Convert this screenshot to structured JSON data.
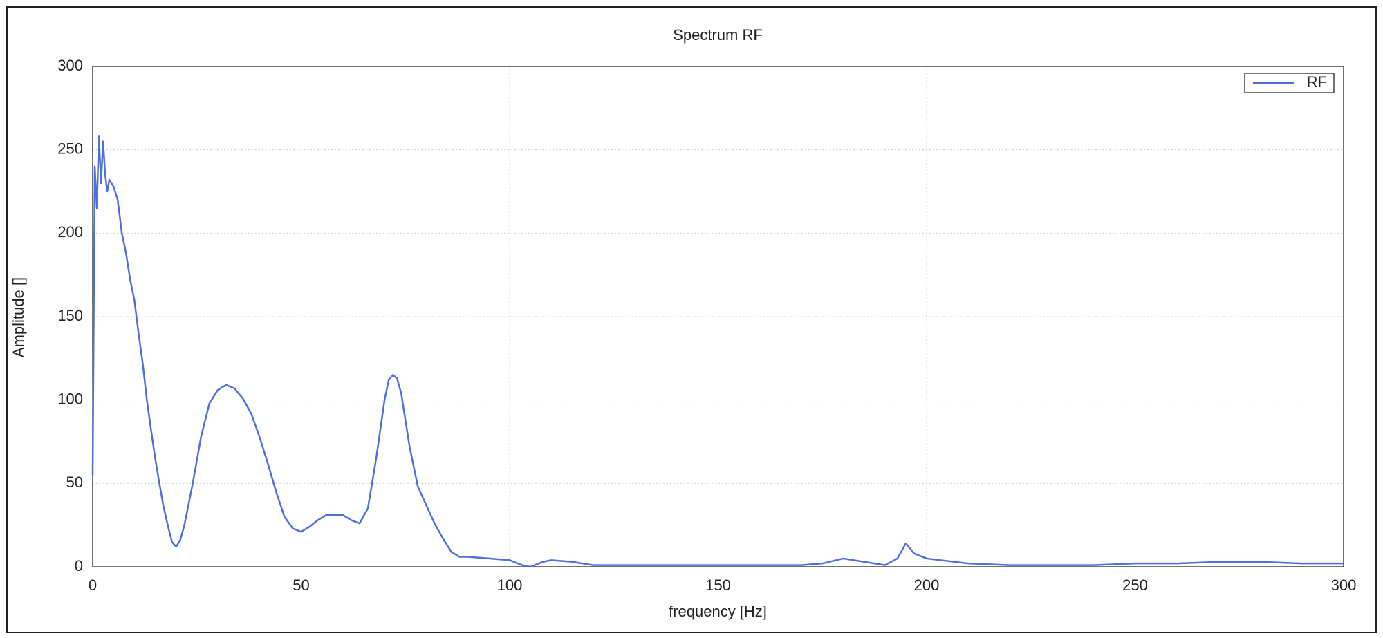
{
  "chart_data": {
    "type": "line",
    "title": "Spectrum RF",
    "x_label": "frequency [Hz]",
    "y_label": "Amplitude []",
    "x": [
      0,
      0.5,
      1,
      1.5,
      2,
      2.5,
      3,
      3.5,
      4,
      5,
      6,
      7,
      8,
      9,
      10,
      11,
      12,
      13,
      14,
      15,
      16,
      17,
      18,
      19,
      20,
      21,
      22,
      24,
      26,
      28,
      30,
      32,
      34,
      36,
      38,
      40,
      42,
      44,
      46,
      48,
      50,
      52,
      54,
      56,
      58,
      60,
      62,
      64,
      66,
      68,
      70,
      71,
      72,
      73,
      74,
      76,
      78,
      80,
      82,
      84,
      86,
      88,
      90,
      95,
      100,
      103,
      105,
      108,
      110,
      115,
      120,
      130,
      140,
      150,
      160,
      170,
      175,
      180,
      185,
      190,
      193,
      195,
      197,
      200,
      210,
      220,
      230,
      240,
      250,
      260,
      270,
      275,
      280,
      290,
      300
    ],
    "series": [
      {
        "name": "RF",
        "color": "#4f6fdd",
        "values": [
          55,
          240,
          215,
          258,
          230,
          255,
          235,
          225,
          232,
          228,
          220,
          200,
          188,
          172,
          160,
          140,
          122,
          100,
          82,
          65,
          50,
          36,
          25,
          15,
          12,
          16,
          25,
          50,
          78,
          98,
          106,
          109,
          107,
          101,
          92,
          78,
          62,
          45,
          30,
          23,
          21,
          24,
          28,
          31,
          31,
          31,
          28,
          26,
          35,
          65,
          100,
          112,
          115,
          113,
          104,
          72,
          48,
          37,
          26,
          17,
          9,
          6,
          6,
          5,
          4,
          1,
          0,
          3,
          4,
          3,
          1,
          1,
          1,
          1,
          1,
          1,
          2,
          5,
          3,
          1,
          5,
          14,
          8,
          5,
          2,
          1,
          1,
          1,
          2,
          2,
          3,
          3,
          3,
          2,
          2
        ]
      }
    ],
    "xlim": [
      0,
      300
    ],
    "ylim": [
      0,
      300
    ],
    "xticks": [
      0,
      50,
      100,
      150,
      200,
      250,
      300
    ],
    "yticks": [
      0,
      50,
      100,
      150,
      200,
      250,
      300
    ],
    "grid": true,
    "legend": "upper right"
  }
}
